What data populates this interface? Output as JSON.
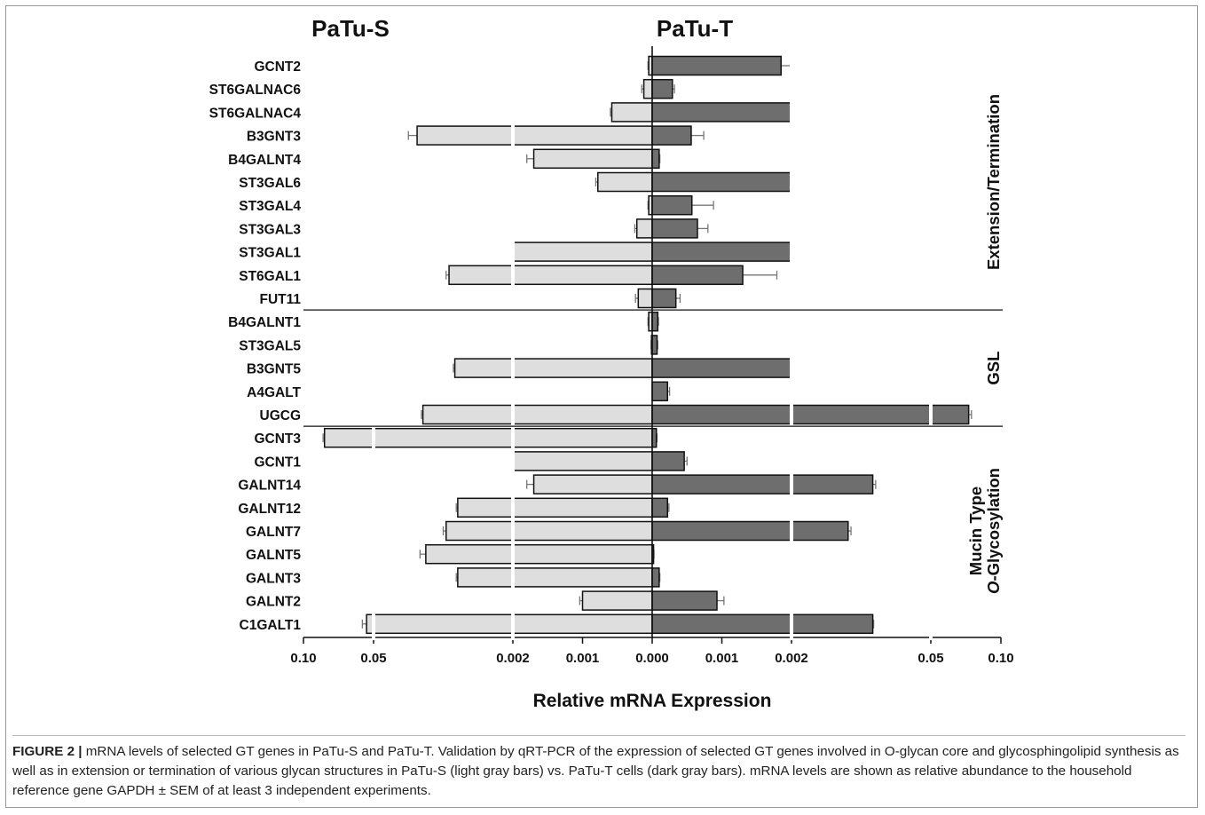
{
  "chart_data": {
    "type": "bar",
    "orientation": "horizontal-diverging",
    "panel_titles": {
      "left": "PaTu-S",
      "right": "PaTu-T"
    },
    "xlabel": "Relative mRNA Expression",
    "x_tick_labels": [
      "0.10",
      "0.05",
      "0.002",
      "0.001",
      "0.000",
      "0.001",
      "0.002",
      "0.05",
      "0.10"
    ],
    "axis_breaks": [
      "0.002",
      "0.05"
    ],
    "colors": {
      "patu_s": "#dedede",
      "patu_t": "#6e6e6e",
      "edge": "#111111",
      "error_bar": "#777777"
    },
    "groups": [
      {
        "label": "Extension/Termination",
        "first": "GCNT2",
        "last": "FUT11"
      },
      {
        "label": "GSL",
        "first": "B4GALNT1",
        "last": "UGCG"
      },
      {
        "label": "Mucin Type O-Glycosylation",
        "lines": [
          "Mucin Type",
          "O-Glycosylation"
        ],
        "first": "GCNT3",
        "last": "C1GALT1"
      }
    ],
    "categories": [
      "GCNT2",
      "ST6GALNAC6",
      "ST6GALNAC4",
      "B3GNT3",
      "B4GALNT4",
      "ST3GAL6",
      "ST3GAL4",
      "ST3GAL3",
      "ST3GAL1",
      "ST6GAL1",
      "FUT11",
      "B4GALNT1",
      "ST3GAL5",
      "B3GNT5",
      "A4GALT",
      "UGCG",
      "GCNT3",
      "GCNT1",
      "GALNT14",
      "GALNT12",
      "GALNT7",
      "GALNT5",
      "GALNT3",
      "GALNT2",
      "C1GALT1"
    ],
    "series": [
      {
        "name": "PaTu-S",
        "values": [
          5e-05,
          0.00012,
          0.00058,
          0.035,
          0.0017,
          0.00078,
          5e-05,
          0.00022,
          0.002,
          0.024,
          0.0002,
          5e-05,
          1e-05,
          0.022,
          0.0,
          0.033,
          0.085,
          0.002,
          0.0017,
          0.021,
          0.025,
          0.032,
          0.021,
          0.001,
          0.055
        ],
        "errors": [
          1e-05,
          3e-05,
          2e-05,
          0.003,
          0.0001,
          3e-05,
          1e-05,
          3e-05,
          2e-05,
          0.001,
          4e-05,
          1e-05,
          5e-06,
          0.0005,
          0.0,
          0.0005,
          0.001,
          2e-05,
          0.0001,
          0.0005,
          0.001,
          0.002,
          0.0005,
          4e-05,
          0.003
        ]
      },
      {
        "name": "PaTu-T",
        "values": [
          0.00185,
          0.00029,
          0.002,
          0.00056,
          0.0001,
          0.002,
          0.00057,
          0.00065,
          0.002,
          0.0013,
          0.00034,
          8e-05,
          7e-05,
          0.002,
          0.00022,
          0.077,
          6e-05,
          0.00046,
          0.03,
          0.00022,
          0.0215,
          2e-05,
          0.0001,
          0.00093,
          0.03
        ],
        "errors": [
          0.00022,
          3e-05,
          2e-05,
          0.00018,
          1e-05,
          2e-05,
          0.00031,
          0.00015,
          2e-05,
          0.00049,
          6e-05,
          1e-05,
          1e-05,
          2e-05,
          3e-05,
          0.002,
          1e-05,
          4e-05,
          0.001,
          2e-05,
          0.001,
          5e-06,
          1e-05,
          0.0001,
          0.0003
        ]
      }
    ]
  },
  "caption": {
    "label": "FIGURE 2 |",
    "text": " mRNA levels of selected GT genes in PaTu-S and PaTu-T. Validation by qRT-PCR of the expression of selected GT genes involved in O-glycan core and glycosphingolipid synthesis as well as in extension or termination of various glycan structures in PaTu-S (light gray bars) vs. PaTu-T cells (dark gray bars). mRNA levels are shown as relative abundance to the household reference gene GAPDH ± SEM of at least 3 independent experiments."
  }
}
